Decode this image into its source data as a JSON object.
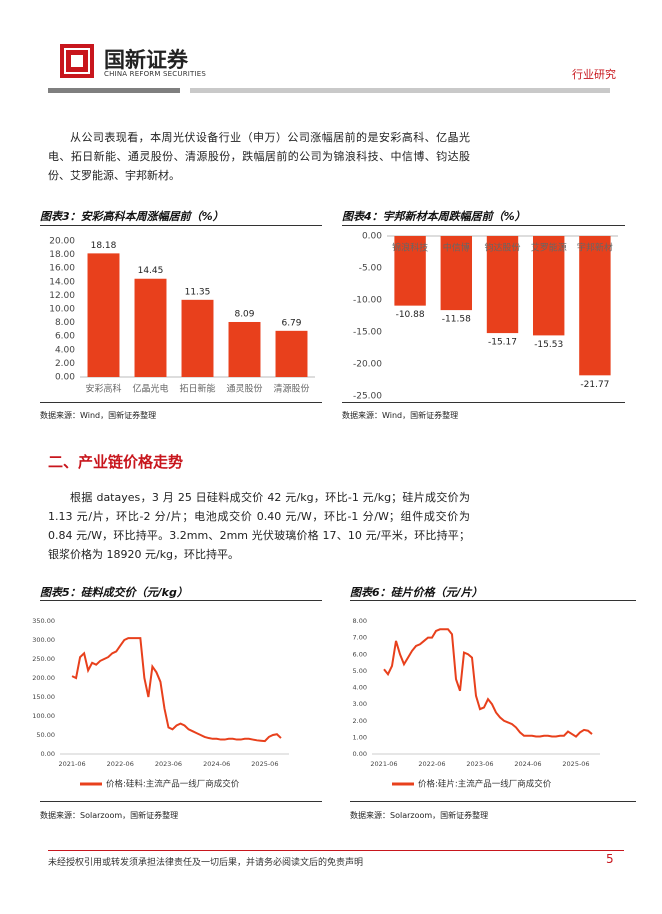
{
  "header": {
    "logo": "国新证券",
    "logo_en": "CHINA REFORM SECURITIES",
    "category": "行业研究"
  },
  "paragraphs": [
    "从公司表现看，本周光伏设备行业（申万）公司涨幅居前的是安彩高科、亿晶光电、拓日新能、通灵股份、清源股份，跌幅居前的公司为锦浪科技、中信博、钧达股份、艾罗能源、宇邦新材。",
    "根据 datayes，3 月 25 日硅料成交价 42 元/kg，环比-1 元/kg；硅片成交价为 1.13 元/片，环比-2 分/片；电池成交价 0.40 元/W，环比-1 分/W；组件成交价为 0.84 元/W，环比持平。3.2mm、2mm 光伏玻璃价格 17、10 元/平米，环比持平；银浆价格为 18920 元/kg，环比持平。"
  ],
  "section_title": "二、产业链价格走势",
  "chart_data": [
    {
      "type": "bar",
      "title": "图表3：安彩高科本周涨幅居前（%）",
      "source": "数据来源：Wind，国新证券整理",
      "categories": [
        "安彩高科",
        "亿晶光电",
        "拓日新能",
        "通灵股份",
        "清源股份"
      ],
      "values": [
        18.18,
        14.45,
        11.35,
        8.09,
        6.79
      ],
      "color": "#e8401c",
      "ylim": [
        0,
        20
      ],
      "yticks": [
        {
          "value": 0,
          "label": "0.00"
        },
        {
          "value": 2,
          "label": "2.00"
        },
        {
          "value": 4,
          "label": "4.00"
        },
        {
          "value": 6,
          "label": "6.00"
        },
        {
          "value": 8,
          "label": "8.00"
        },
        {
          "value": 10,
          "label": "10.00"
        },
        {
          "value": 12,
          "label": "12.00"
        },
        {
          "value": 14,
          "label": "14.00"
        },
        {
          "value": 16,
          "label": "16.00"
        },
        {
          "value": 18,
          "label": "18.00"
        },
        {
          "value": 20,
          "label": "20.00"
        }
      ]
    },
    {
      "type": "bar",
      "title": "图表4：宇邦新材本周跌幅居前（%）",
      "source": "数据来源：Wind，国新证券整理",
      "categories": [
        "锦浪科技",
        "中信博",
        "钧达股份",
        "艾罗能源",
        "宇邦新材"
      ],
      "values": [
        -10.88,
        -11.58,
        -15.17,
        -15.53,
        -21.77
      ],
      "color": "#e8401c",
      "ylim": [
        -25,
        0
      ],
      "yticks": [
        {
          "value": 0,
          "label": "0.00"
        },
        {
          "value": -5,
          "label": "-5.00"
        },
        {
          "value": -10,
          "label": "-10.00"
        },
        {
          "value": -15,
          "label": "-15.00"
        },
        {
          "value": -20,
          "label": "-20.00"
        },
        {
          "value": -25,
          "label": "-25.00"
        }
      ]
    },
    {
      "type": "line",
      "title": "图表5：硅料成交价（元/kg）",
      "source": "数据来源：Solarzoom，国新证券整理",
      "x": [
        "2021-06",
        "2021-07",
        "2021-08",
        "2021-09",
        "2021-10",
        "2021-11",
        "2021-12",
        "2022-01",
        "2022-02",
        "2022-03",
        "2022-04",
        "2022-05",
        "2022-06",
        "2022-07",
        "2022-08",
        "2022-09",
        "2022-10",
        "2022-11",
        "2022-12",
        "2023-01",
        "2023-02",
        "2023-03",
        "2023-04",
        "2023-05",
        "2023-06",
        "2023-07",
        "2023-08",
        "2023-09",
        "2023-10",
        "2023-11",
        "2023-12",
        "2024-01",
        "2024-02",
        "2024-03",
        "2024-04",
        "2024-05",
        "2024-06",
        "2024-07",
        "2024-08",
        "2024-09",
        "2024-10",
        "2024-11",
        "2024-12",
        "2025-01",
        "2025-02",
        "2025-03",
        "2025-04",
        "2025-05",
        "2025-06",
        "2025-07",
        "2025-08",
        "2025-09",
        "2025-10"
      ],
      "series": [
        {
          "name": "价格:硅料:主流产品一线厂商成交价",
          "color": "#e8401c",
          "values": [
            205,
            200,
            255,
            265,
            220,
            240,
            235,
            245,
            250,
            255,
            265,
            270,
            285,
            300,
            305,
            305,
            305,
            305,
            200,
            150,
            230,
            215,
            190,
            120,
            70,
            65,
            75,
            80,
            75,
            65,
            60,
            55,
            50,
            45,
            42,
            40,
            40,
            38,
            38,
            40,
            40,
            38,
            38,
            40,
            40,
            38,
            36,
            35,
            34,
            45,
            50,
            52,
            42
          ]
        }
      ],
      "xlim": [
        "2021-03",
        "2025-12"
      ],
      "xticks": [
        "2021-06",
        "2022-06",
        "2023-06",
        "2024-06",
        "2025-06"
      ],
      "ylim": [
        0,
        350
      ],
      "yticks": [
        {
          "value": 0,
          "label": "0.00"
        },
        {
          "value": 50,
          "label": "50.00"
        },
        {
          "value": 100,
          "label": "100.00"
        },
        {
          "value": 150,
          "label": "150.00"
        },
        {
          "value": 200,
          "label": "200.00"
        },
        {
          "value": 250,
          "label": "250.00"
        },
        {
          "value": 300,
          "label": "300.00"
        },
        {
          "value": 350,
          "label": "350.00"
        }
      ]
    },
    {
      "type": "line",
      "title": "图表6：硅片价格（元/片）",
      "source": "数据来源：Solarzoom，国新证券整理",
      "x": [
        "2021-06",
        "2021-07",
        "2021-08",
        "2021-09",
        "2021-10",
        "2021-11",
        "2021-12",
        "2022-01",
        "2022-02",
        "2022-03",
        "2022-04",
        "2022-05",
        "2022-06",
        "2022-07",
        "2022-08",
        "2022-09",
        "2022-10",
        "2022-11",
        "2022-12",
        "2023-01",
        "2023-02",
        "2023-03",
        "2023-04",
        "2023-05",
        "2023-06",
        "2023-07",
        "2023-08",
        "2023-09",
        "2023-10",
        "2023-11",
        "2023-12",
        "2024-01",
        "2024-02",
        "2024-03",
        "2024-04",
        "2024-05",
        "2024-06",
        "2024-07",
        "2024-08",
        "2024-09",
        "2024-10",
        "2024-11",
        "2024-12",
        "2025-01",
        "2025-02",
        "2025-03",
        "2025-04",
        "2025-05",
        "2025-06",
        "2025-07",
        "2025-08",
        "2025-09",
        "2025-10"
      ],
      "series": [
        {
          "name": "价格:硅片:主流产品一线厂商成交价",
          "color": "#e8401c",
          "values": [
            5.1,
            4.8,
            5.3,
            6.8,
            6.0,
            5.4,
            5.8,
            6.2,
            6.5,
            6.6,
            6.8,
            7.0,
            7.0,
            7.4,
            7.5,
            7.5,
            7.5,
            7.2,
            4.5,
            3.8,
            6.1,
            6.0,
            5.8,
            3.5,
            2.7,
            2.8,
            3.3,
            3.0,
            2.5,
            2.2,
            2.0,
            1.9,
            1.8,
            1.6,
            1.3,
            1.1,
            1.1,
            1.1,
            1.05,
            1.05,
            1.1,
            1.1,
            1.05,
            1.05,
            1.1,
            1.1,
            1.35,
            1.2,
            1.05,
            1.3,
            1.45,
            1.4,
            1.2
          ]
        }
      ],
      "xlim": [
        "2021-03",
        "2025-12"
      ],
      "xticks": [
        "2021-06",
        "2022-06",
        "2023-06",
        "2024-06",
        "2025-06"
      ],
      "ylim": [
        0,
        8
      ],
      "yticks": [
        {
          "value": 0,
          "label": "0.00"
        },
        {
          "value": 1,
          "label": "1.00"
        },
        {
          "value": 2,
          "label": "2.00"
        },
        {
          "value": 3,
          "label": "3.00"
        },
        {
          "value": 4,
          "label": "4.00"
        },
        {
          "value": 5,
          "label": "5.00"
        },
        {
          "value": 6,
          "label": "6.00"
        },
        {
          "value": 7,
          "label": "7.00"
        },
        {
          "value": 8,
          "label": "8.00"
        }
      ]
    }
  ],
  "footer": {
    "disclaimer": "未经授权引用或转发须承担法律责任及一切后果，并请务必阅读文后的免责声明",
    "page": 5
  }
}
